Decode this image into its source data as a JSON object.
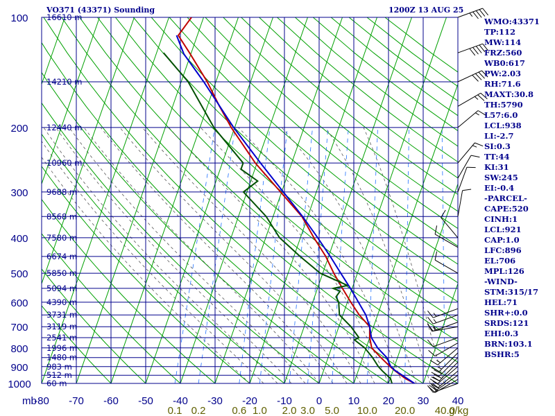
{
  "header": {
    "title": "VO371 (43371) Sounding",
    "time": "1200Z 13 AUG 25"
  },
  "colors": {
    "grid": "#00008b",
    "dry_adiabat": "#00a000",
    "moist_adiabat": "#555555",
    "mixing_ratio": "#1e6fff",
    "temperature": "#c00000",
    "dewpoint": "#005000",
    "parcel": "#0000cc",
    "text": "#00008b",
    "mixing_ratio_labels": "#606000"
  },
  "stats": [
    "WMO:43371",
    "TP:112",
    "MW:114",
    "FRZ:560",
    "WB0:617",
    "PW:2.03",
    "RH:71.6",
    "MAXT:30.8",
    "TH:5790",
    "L57:6.0",
    "LCL:938",
    "LI:-2.7",
    "SI:0.3",
    "TT:44",
    "KI:31",
    "SW:245",
    "EI:-0.4",
    "-PARCEL-",
    "CAPE:520",
    "CINH:1",
    "LCL:921",
    "CAP:1.0",
    "LFC:896",
    "EL:706",
    "MPL:126",
    "-WIND-",
    "STM:315/17",
    "HEL:71",
    "SHR+:0.0",
    "SRDS:121",
    "EHI:0.3",
    "BRN:103.1",
    "BSHR:5"
  ],
  "chart_data": {
    "type": "skew-t",
    "title": "VO371 (43371) Sounding",
    "xlabel": "",
    "ylabel": "mb",
    "x_unit_label": "g/kg",
    "pressure_ticks": [
      {
        "p": 100,
        "label": "100"
      },
      {
        "p": 200,
        "label": "200"
      },
      {
        "p": 300,
        "label": "300"
      },
      {
        "p": 400,
        "label": "400"
      },
      {
        "p": 500,
        "label": "500"
      },
      {
        "p": 600,
        "label": "600"
      },
      {
        "p": 700,
        "label": "700"
      },
      {
        "p": 800,
        "label": "800"
      },
      {
        "p": 900,
        "label": "900"
      },
      {
        "p": 1000,
        "label": "1000"
      }
    ],
    "temperature_ticks": [
      {
        "t": -80,
        "label": "-80"
      },
      {
        "t": -70,
        "label": "-70"
      },
      {
        "t": -60,
        "label": "-60"
      },
      {
        "t": -50,
        "label": "-50"
      },
      {
        "t": -40,
        "label": "-40"
      },
      {
        "t": -30,
        "label": "-30"
      },
      {
        "t": -20,
        "label": "-20"
      },
      {
        "t": -10,
        "label": "-10"
      },
      {
        "t": 0,
        "label": "0"
      },
      {
        "t": 10,
        "label": "10"
      },
      {
        "t": 20,
        "label": "20"
      },
      {
        "t": 30,
        "label": "30"
      },
      {
        "t": 40,
        "label": "40"
      }
    ],
    "mixing_ratio_labels": [
      {
        "w": 0.1,
        "label": "0.1"
      },
      {
        "w": 0.2,
        "label": "0.2"
      },
      {
        "w": 0.6,
        "label": "0.6"
      },
      {
        "w": 1.0,
        "label": "1.0"
      },
      {
        "w": 2.0,
        "label": "2.0"
      },
      {
        "w": 3.0,
        "label": "3.0"
      },
      {
        "w": 5.0,
        "label": "5.0"
      },
      {
        "w": 10.0,
        "label": "10.0"
      },
      {
        "w": 20.0,
        "label": "20.0"
      },
      {
        "w": 40.0,
        "label": "40.0"
      }
    ],
    "height_labels": [
      {
        "p": 100,
        "label": "16610 m"
      },
      {
        "p": 150,
        "label": "14210 m"
      },
      {
        "p": 200,
        "label": "12440 m"
      },
      {
        "p": 250,
        "label": "10960 m"
      },
      {
        "p": 300,
        "label": "9688 m"
      },
      {
        "p": 350,
        "label": "8568 m"
      },
      {
        "p": 400,
        "label": "7580 m"
      },
      {
        "p": 450,
        "label": "6674 m"
      },
      {
        "p": 500,
        "label": "5850 m"
      },
      {
        "p": 550,
        "label": "5094 m"
      },
      {
        "p": 600,
        "label": "4390 m"
      },
      {
        "p": 650,
        "label": "3731 m"
      },
      {
        "p": 700,
        "label": "3119 m"
      },
      {
        "p": 750,
        "label": "2541 m"
      },
      {
        "p": 800,
        "label": "1996 m"
      },
      {
        "p": 850,
        "label": "1480 m"
      },
      {
        "p": 900,
        "label": "983 m"
      },
      {
        "p": 950,
        "label": "512 m"
      },
      {
        "p": 1000,
        "label": "60 m"
      }
    ],
    "pressure_range": [
      100,
      1000
    ],
    "temperature_range": [
      -80,
      40
    ],
    "series": [
      {
        "name": "temperature",
        "points": [
          [
            1000,
            27.5
          ],
          [
            970,
            24.4
          ],
          [
            925,
            20.7
          ],
          [
            900,
            18.8
          ],
          [
            850,
            15.2
          ],
          [
            800,
            11.6
          ],
          [
            750,
            10.0
          ],
          [
            700,
            8.9
          ],
          [
            650,
            4.7
          ],
          [
            600,
            1.0
          ],
          [
            550,
            -2.8
          ],
          [
            500,
            -6.8
          ],
          [
            450,
            -10.8
          ],
          [
            400,
            -16.1
          ],
          [
            350,
            -21.7
          ],
          [
            300,
            -30.3
          ],
          [
            250,
            -40.5
          ],
          [
            200,
            -51.0
          ],
          [
            175,
            -56.5
          ],
          [
            150,
            -62.5
          ],
          [
            125,
            -70.5
          ],
          [
            112,
            -75.5
          ],
          [
            100,
            -73.5
          ]
        ]
      },
      {
        "name": "dewpoint",
        "points": [
          [
            1000,
            21.0
          ],
          [
            970,
            20.1
          ],
          [
            925,
            17.0
          ],
          [
            900,
            15.4
          ],
          [
            850,
            12.8
          ],
          [
            800,
            9.6
          ],
          [
            760,
            5.8
          ],
          [
            750,
            6.9
          ],
          [
            700,
            3.5
          ],
          [
            650,
            -1.0
          ],
          [
            600,
            -2.5
          ],
          [
            580,
            -3.8
          ],
          [
            560,
            -3.2
          ],
          [
            550,
            -5.5
          ],
          [
            540,
            -1.6
          ],
          [
            500,
            -10.7
          ],
          [
            450,
            -18.2
          ],
          [
            400,
            -26.0
          ],
          [
            350,
            -32.0
          ],
          [
            300,
            -41.0
          ],
          [
            280,
            -38.0
          ],
          [
            260,
            -44.0
          ],
          [
            250,
            -44.0
          ],
          [
            200,
            -56.0
          ],
          [
            150,
            -68.0
          ],
          [
            125,
            -78.0
          ]
        ]
      },
      {
        "name": "parcel",
        "points": [
          [
            1000,
            27.5
          ],
          [
            921,
            20.5
          ],
          [
            896,
            18.8
          ],
          [
            850,
            16.9
          ],
          [
            800,
            13.3
          ],
          [
            750,
            10.5
          ],
          [
            700,
            8.9
          ],
          [
            650,
            6.6
          ],
          [
            600,
            3.2
          ],
          [
            550,
            -0.5
          ],
          [
            500,
            -4.8
          ],
          [
            450,
            -9.5
          ],
          [
            400,
            -15.0
          ],
          [
            350,
            -21.5
          ],
          [
            300,
            -29.5
          ],
          [
            250,
            -39.0
          ],
          [
            200,
            -50.3
          ],
          [
            150,
            -63.5
          ],
          [
            126,
            -72.0
          ],
          [
            112,
            -76.0
          ]
        ]
      }
    ],
    "wind_barbs": [
      {
        "p": 1000,
        "dir": 250,
        "speed": 15
      },
      {
        "p": 975,
        "dir": 240,
        "speed": 20
      },
      {
        "p": 950,
        "dir": 235,
        "speed": 20
      },
      {
        "p": 925,
        "dir": 230,
        "speed": 20
      },
      {
        "p": 900,
        "dir": 230,
        "speed": 20
      },
      {
        "p": 875,
        "dir": 225,
        "speed": 20
      },
      {
        "p": 850,
        "dir": 225,
        "speed": 20
      },
      {
        "p": 825,
        "dir": 225,
        "speed": 15
      },
      {
        "p": 800,
        "dir": 230,
        "speed": 15
      },
      {
        "p": 775,
        "dir": 240,
        "speed": 10
      },
      {
        "p": 750,
        "dir": 250,
        "speed": 10
      },
      {
        "p": 700,
        "dir": 260,
        "speed": 15
      },
      {
        "p": 680,
        "dir": 250,
        "speed": 15
      },
      {
        "p": 650,
        "dir": 250,
        "speed": 15
      },
      {
        "p": 625,
        "dir": 250,
        "speed": 15
      },
      {
        "p": 500,
        "dir": 300,
        "speed": 10
      },
      {
        "p": 425,
        "dir": 300,
        "speed": 10
      },
      {
        "p": 400,
        "dir": 320,
        "speed": 10
      },
      {
        "p": 350,
        "dir": 10,
        "speed": 10
      },
      {
        "p": 300,
        "dir": 20,
        "speed": 10
      },
      {
        "p": 275,
        "dir": 30,
        "speed": 10
      },
      {
        "p": 250,
        "dir": 40,
        "speed": 15
      },
      {
        "p": 200,
        "dir": 50,
        "speed": 15
      },
      {
        "p": 175,
        "dir": 60,
        "speed": 25
      },
      {
        "p": 150,
        "dir": 65,
        "speed": 40
      },
      {
        "p": 125,
        "dir": 70,
        "speed": 50
      },
      {
        "p": 100,
        "dir": 70,
        "speed": 45
      }
    ],
    "grid": true
  }
}
